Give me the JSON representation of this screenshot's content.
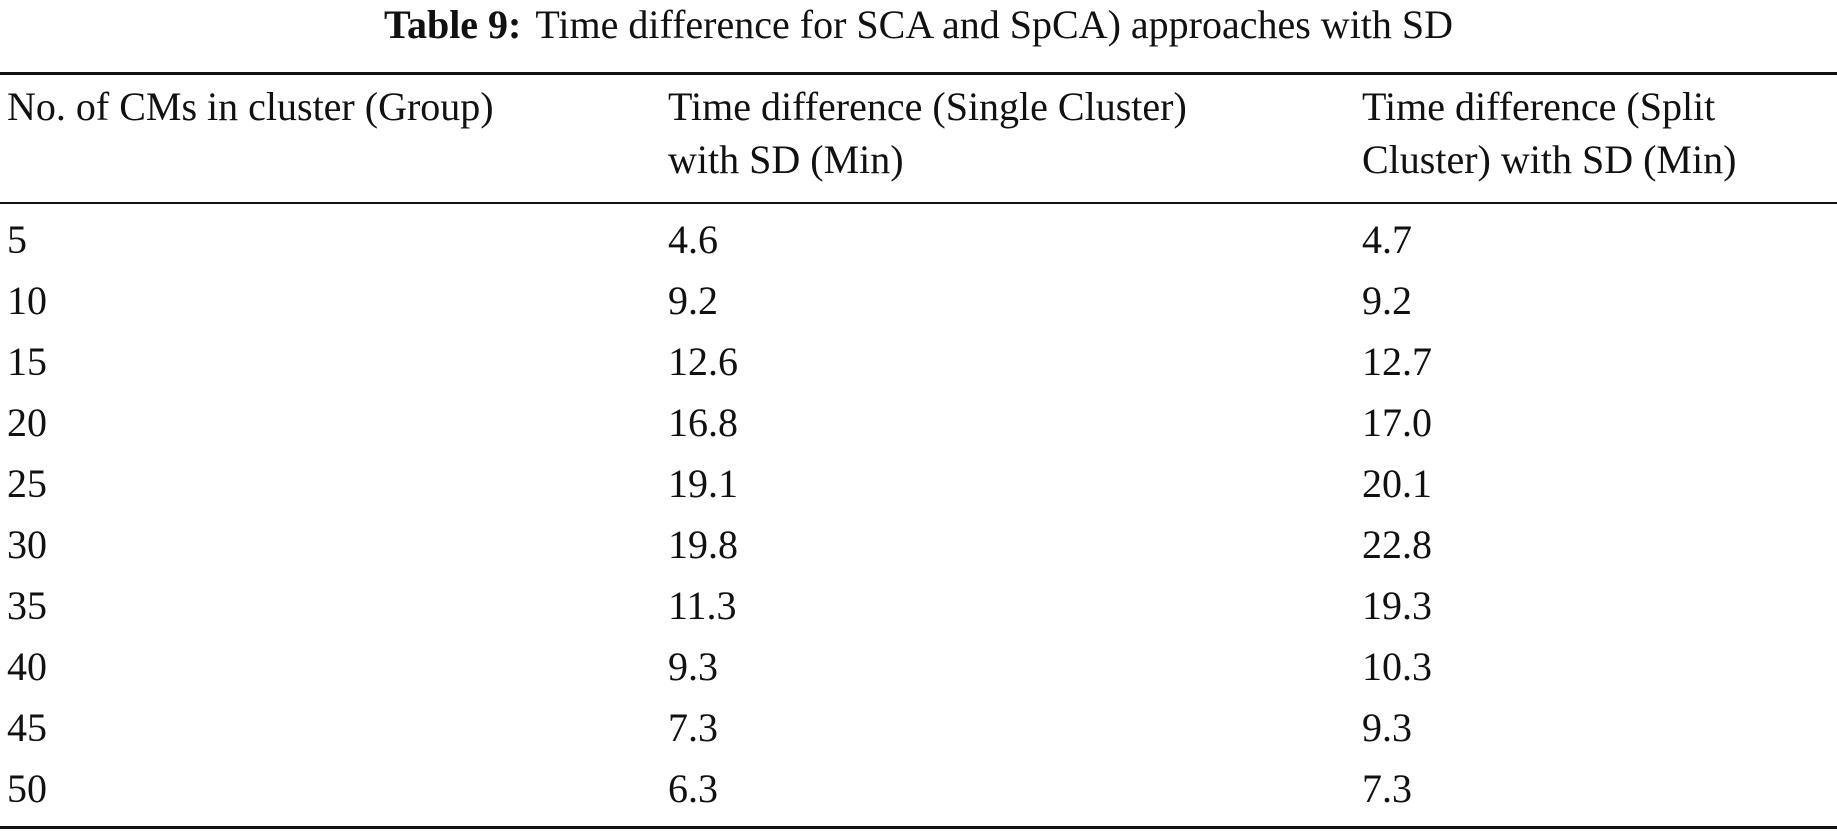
{
  "caption": {
    "label": "Table 9:",
    "text": "Time difference for SCA and SpCA) approaches with SD"
  },
  "table": {
    "headers": [
      [
        "No. of CMs in cluster (Group)"
      ],
      [
        "Time difference (Single Cluster)",
        "with SD (Min)"
      ],
      [
        "Time difference (Split",
        "Cluster) with SD (Min)"
      ]
    ],
    "rows": [
      [
        "5",
        "4.6",
        "4.7"
      ],
      [
        "10",
        "9.2",
        "9.2"
      ],
      [
        "15",
        "12.6",
        "12.7"
      ],
      [
        "20",
        "16.8",
        "17.0"
      ],
      [
        "25",
        "19.1",
        "20.1"
      ],
      [
        "30",
        "19.8",
        "22.8"
      ],
      [
        "35",
        "11.3",
        "19.3"
      ],
      [
        "40",
        "9.3",
        "10.3"
      ],
      [
        "45",
        "7.3",
        "9.3"
      ],
      [
        "50",
        "6.3",
        "7.3"
      ]
    ]
  }
}
